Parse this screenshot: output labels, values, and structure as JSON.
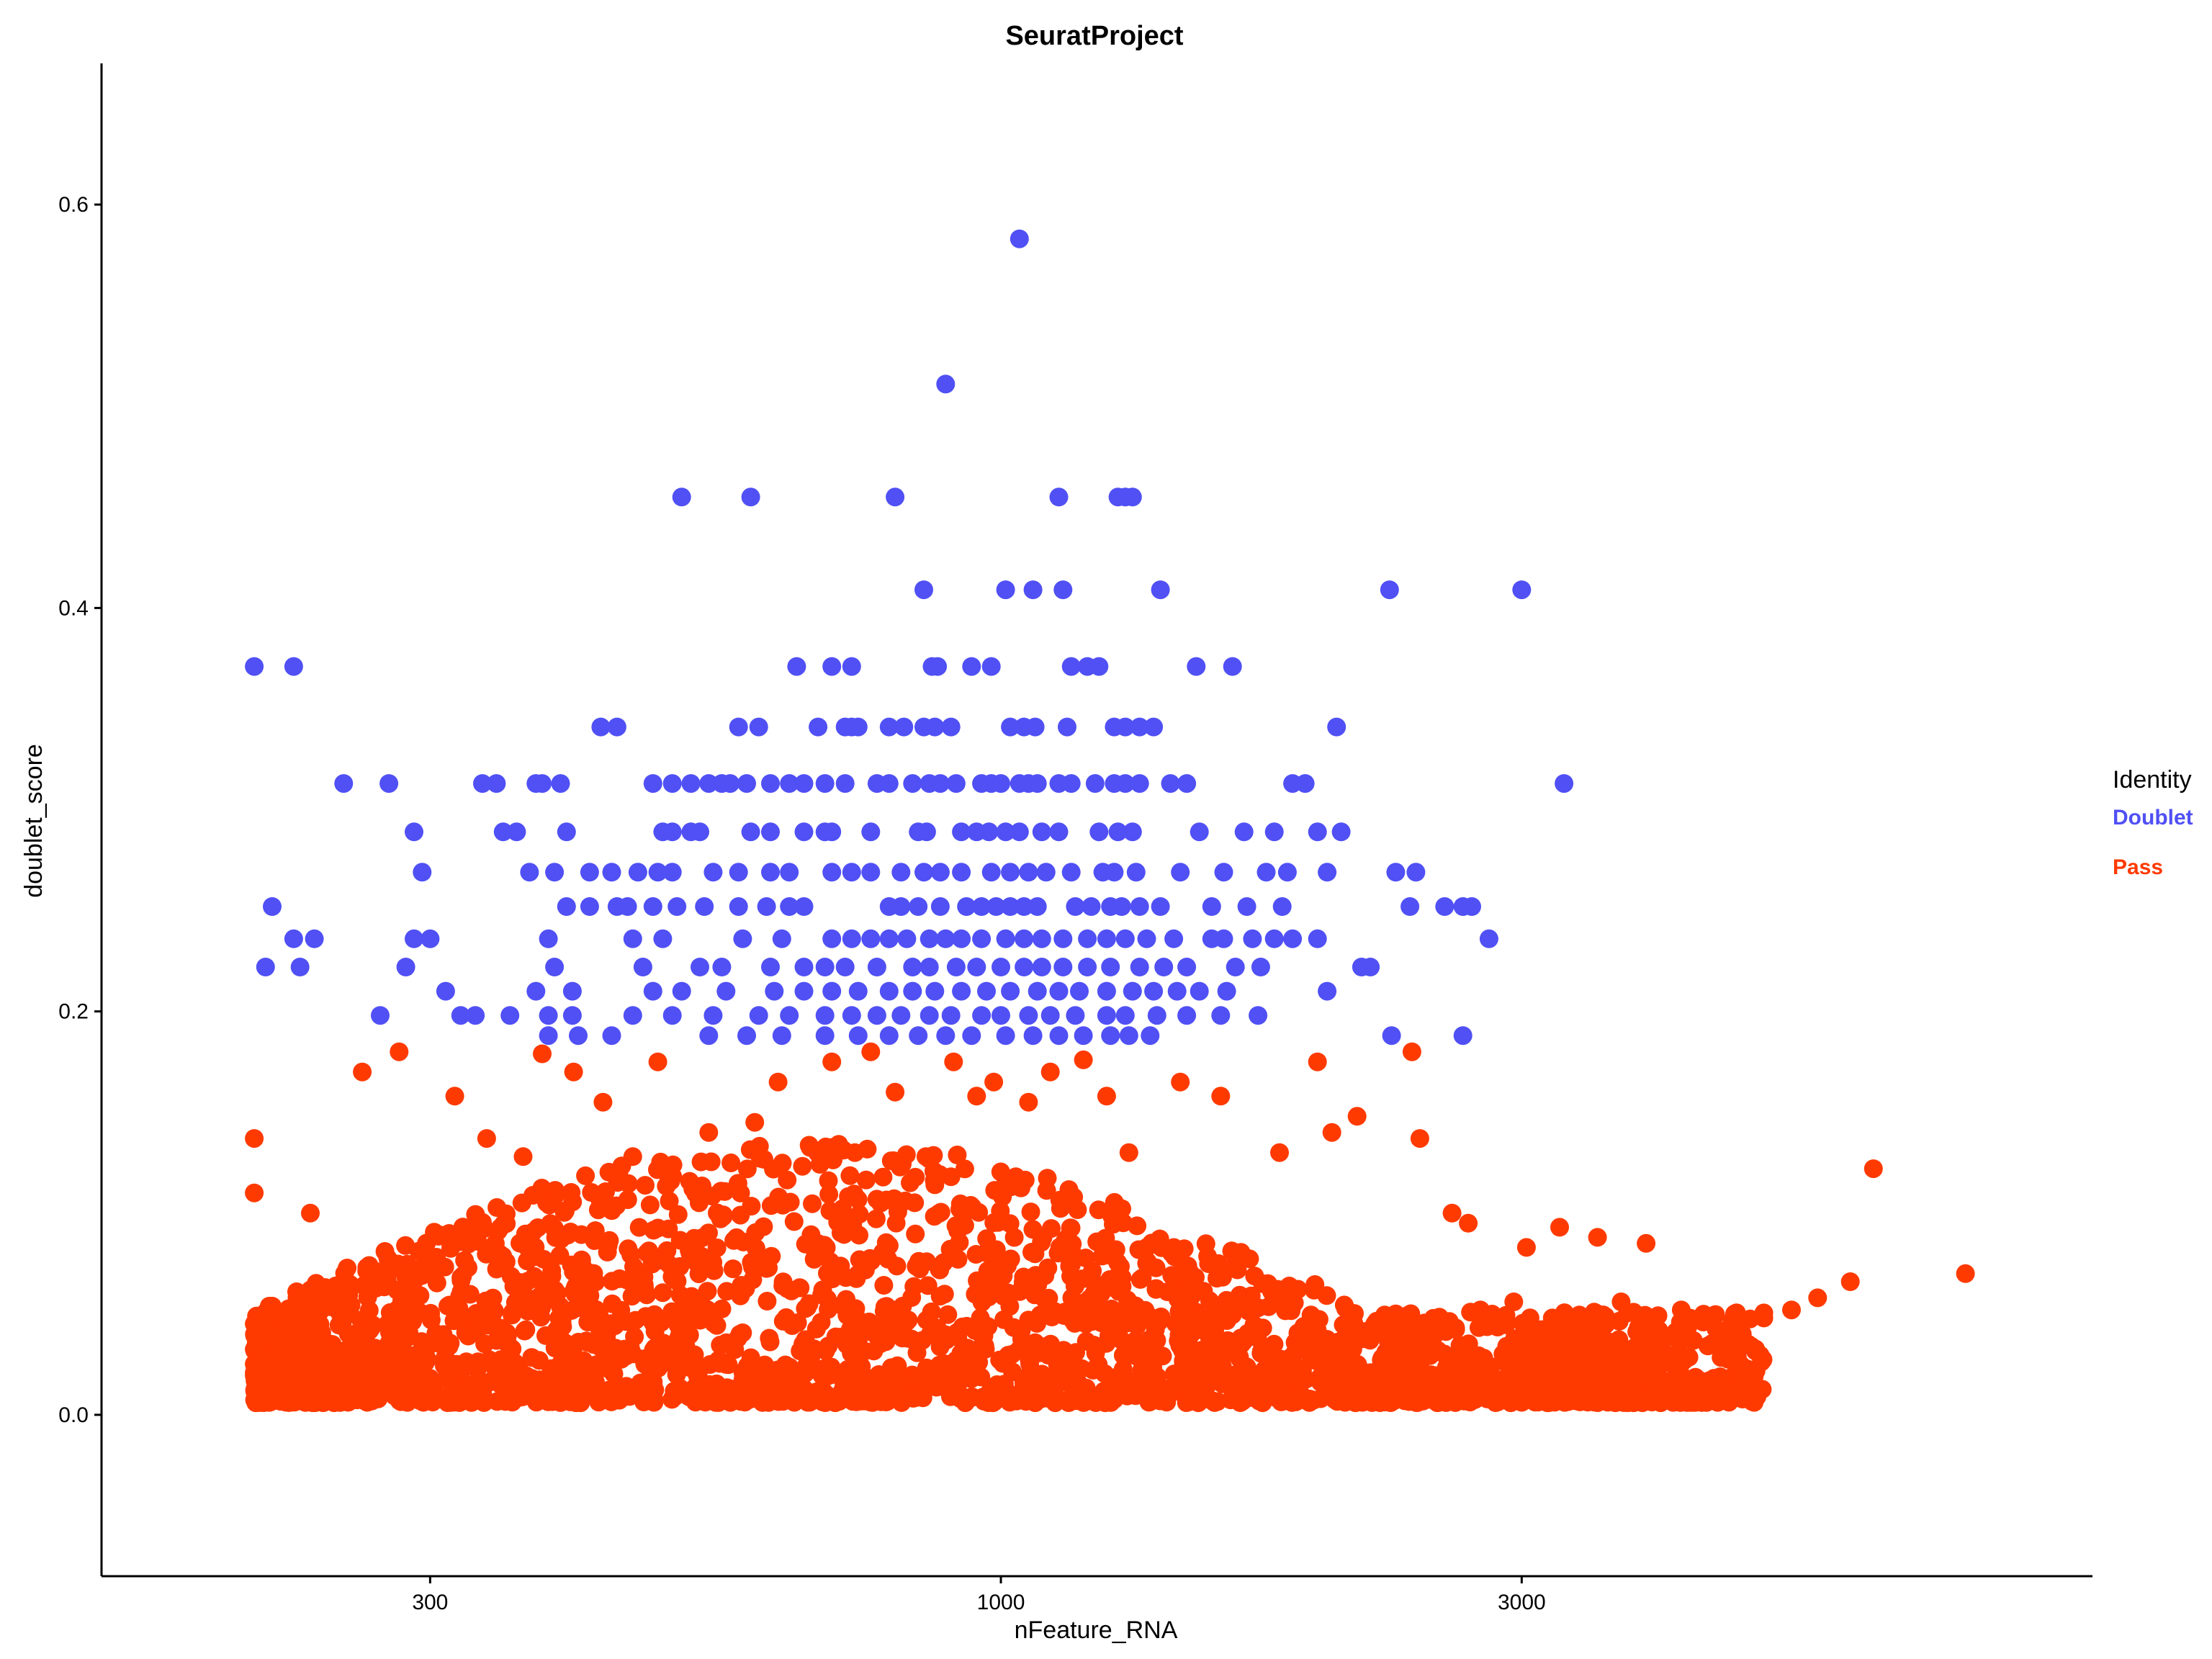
{
  "chart_data": {
    "type": "scatter",
    "title": "SeuratProject",
    "xlabel": "nFeature_RNA",
    "ylabel": "doublet_score",
    "x_scale": "log10",
    "xlim": [
      150,
      10000
    ],
    "ylim": [
      -0.08,
      0.67
    ],
    "x_ticks": [
      300,
      1000,
      3000
    ],
    "x_tick_labels": [
      "300",
      "1000",
      "3000"
    ],
    "y_ticks": [
      0.0,
      0.2,
      0.4,
      0.6
    ],
    "y_tick_labels": [
      "0.0",
      "0.2",
      "0.4",
      "0.6"
    ],
    "grid": false,
    "legend": {
      "title": "Identity",
      "placement": "right",
      "entries": [
        {
          "name": "Doublet",
          "color": "#5050f5"
        },
        {
          "name": "Pass",
          "color": "#ff3a00"
        }
      ]
    },
    "series": [
      {
        "name": "Doublet",
        "color": "#5050f5",
        "x": [
          1040,
          890,
          510,
          590,
          800,
          1130,
          1280,
          1300,
          1320,
          850,
          1070,
          1010,
          1140,
          1400,
          3000,
          2270,
          207,
          225,
          650,
          700,
          730,
          865,
          875,
          940,
          980,
          1160,
          1200,
          1230,
          1510,
          1630,
          430,
          445,
          575,
          600,
          680,
          720,
          730,
          740,
          790,
          815,
          850,
          870,
          900,
          1020,
          1050,
          1075,
          1150,
          1270,
          1300,
          1340,
          1380,
          2030,
          250,
          275,
          335,
          345,
          375,
          380,
          395,
          480,
          500,
          520,
          540,
          555,
          565,
          585,
          615,
          640,
          660,
          690,
          720,
          770,
          790,
          830,
          860,
          880,
          910,
          960,
          980,
          1000,
          1040,
          1060,
          1080,
          1130,
          1160,
          1220,
          1270,
          1300,
          1340,
          1430,
          1480,
          1850,
          1900,
          3280,
          290,
          350,
          360,
          400,
          490,
          500,
          520,
          530,
          590,
          615,
          660,
          690,
          700,
          760,
          840,
          855,
          920,
          950,
          975,
          1010,
          1040,
          1090,
          1130,
          1230,
          1280,
          1320,
          1520,
          1670,
          1780,
          1950,
          2050,
          295,
          370,
          390,
          420,
          440,
          465,
          485,
          500,
          545,
          575,
          615,
          640,
          700,
          730,
          760,
          810,
          850,
          880,
          920,
          980,
          1020,
          1060,
          1100,
          1160,
          1240,
          1270,
          1330,
          1460,
          1600,
          1750,
          1830,
          1990,
          2300,
          2400,
          215,
          400,
          420,
          445,
          455,
          480,
          505,
          535,
          575,
          610,
          640,
          660,
          790,
          810,
          840,
          880,
          930,
          960,
          990,
          1020,
          1050,
          1080,
          1170,
          1210,
          1260,
          1290,
          1340,
          1400,
          1560,
          1680,
          1810,
          2370,
          2550,
          2650,
          2700,
          225,
          235,
          290,
          300,
          385,
          460,
          490,
          580,
          630,
          700,
          730,
          760,
          790,
          820,
          860,
          890,
          920,
          960,
          1010,
          1050,
          1090,
          1140,
          1200,
          1250,
          1300,
          1360,
          1440,
          1560,
          1600,
          1700,
          1780,
          1850,
          1950,
          2800,
          212,
          228,
          285,
          390,
          470,
          530,
          555,
          615,
          660,
          690,
          720,
          770,
          830,
          860,
          910,
          950,
          1000,
          1050,
          1090,
          1140,
          1200,
          1260,
          1340,
          1410,
          1480,
          1640,
          1730,
          2140,
          2180,
          310,
          375,
          405,
          480,
          510,
          560,
          620,
          660,
          700,
          740,
          790,
          830,
          870,
          920,
          970,
          1020,
          1080,
          1130,
          1180,
          1250,
          1320,
          1380,
          1450,
          1520,
          1610,
          1990,
          270,
          320,
          330,
          355,
          385,
          405,
          460,
          500,
          545,
          600,
          640,
          690,
          730,
          770,
          810,
          860,
          900,
          960,
          1000,
          1060,
          1110,
          1170,
          1250,
          1300,
          1390,
          1480,
          1590,
          1720,
          385,
          410,
          440,
          540,
          585,
          630,
          690,
          740,
          790,
          840,
          890,
          940,
          1010,
          1070,
          1130,
          1190,
          1260,
          1310,
          1370,
          2280,
          2650
        ],
        "y": [
          0.583,
          0.511,
          0.455,
          0.455,
          0.455,
          0.455,
          0.455,
          0.455,
          0.455,
          0.409,
          0.409,
          0.409,
          0.409,
          0.409,
          0.409,
          0.409,
          0.371,
          0.371,
          0.371,
          0.371,
          0.371,
          0.371,
          0.371,
          0.371,
          0.371,
          0.371,
          0.371,
          0.371,
          0.371,
          0.371,
          0.341,
          0.341,
          0.341,
          0.341,
          0.341,
          0.341,
          0.341,
          0.341,
          0.341,
          0.341,
          0.341,
          0.341,
          0.341,
          0.341,
          0.341,
          0.341,
          0.341,
          0.341,
          0.341,
          0.341,
          0.341,
          0.341,
          0.313,
          0.313,
          0.313,
          0.313,
          0.313,
          0.313,
          0.313,
          0.313,
          0.313,
          0.313,
          0.313,
          0.313,
          0.313,
          0.313,
          0.313,
          0.313,
          0.313,
          0.313,
          0.313,
          0.313,
          0.313,
          0.313,
          0.313,
          0.313,
          0.313,
          0.313,
          0.313,
          0.313,
          0.313,
          0.313,
          0.313,
          0.313,
          0.313,
          0.313,
          0.313,
          0.313,
          0.313,
          0.313,
          0.313,
          0.313,
          0.313,
          0.313,
          0.289,
          0.289,
          0.289,
          0.289,
          0.289,
          0.289,
          0.289,
          0.289,
          0.289,
          0.289,
          0.289,
          0.289,
          0.289,
          0.289,
          0.289,
          0.289,
          0.289,
          0.289,
          0.289,
          0.289,
          0.289,
          0.289,
          0.289,
          0.289,
          0.289,
          0.289,
          0.289,
          0.289,
          0.289,
          0.289,
          0.289,
          0.269,
          0.269,
          0.269,
          0.269,
          0.269,
          0.269,
          0.269,
          0.269,
          0.269,
          0.269,
          0.269,
          0.269,
          0.269,
          0.269,
          0.269,
          0.269,
          0.269,
          0.269,
          0.269,
          0.269,
          0.269,
          0.269,
          0.269,
          0.269,
          0.269,
          0.269,
          0.269,
          0.269,
          0.269,
          0.269,
          0.269,
          0.269,
          0.269,
          0.269,
          0.252,
          0.252,
          0.252,
          0.252,
          0.252,
          0.252,
          0.252,
          0.252,
          0.252,
          0.252,
          0.252,
          0.252,
          0.252,
          0.252,
          0.252,
          0.252,
          0.252,
          0.252,
          0.252,
          0.252,
          0.252,
          0.252,
          0.252,
          0.252,
          0.252,
          0.252,
          0.252,
          0.252,
          0.252,
          0.252,
          0.252,
          0.252,
          0.252,
          0.252,
          0.252,
          0.236,
          0.236,
          0.236,
          0.236,
          0.236,
          0.236,
          0.236,
          0.236,
          0.236,
          0.236,
          0.236,
          0.236,
          0.236,
          0.236,
          0.236,
          0.236,
          0.236,
          0.236,
          0.236,
          0.236,
          0.236,
          0.236,
          0.236,
          0.236,
          0.236,
          0.236,
          0.236,
          0.236,
          0.236,
          0.236,
          0.236,
          0.236,
          0.236,
          0.236,
          0.222,
          0.222,
          0.222,
          0.222,
          0.222,
          0.222,
          0.222,
          0.222,
          0.222,
          0.222,
          0.222,
          0.222,
          0.222,
          0.222,
          0.222,
          0.222,
          0.222,
          0.222,
          0.222,
          0.222,
          0.222,
          0.222,
          0.222,
          0.222,
          0.222,
          0.222,
          0.222,
          0.222,
          0.222,
          0.21,
          0.21,
          0.21,
          0.21,
          0.21,
          0.21,
          0.21,
          0.21,
          0.21,
          0.21,
          0.21,
          0.21,
          0.21,
          0.21,
          0.21,
          0.21,
          0.21,
          0.21,
          0.21,
          0.21,
          0.21,
          0.21,
          0.21,
          0.21,
          0.21,
          0.21,
          0.198,
          0.198,
          0.198,
          0.198,
          0.198,
          0.198,
          0.198,
          0.198,
          0.198,
          0.198,
          0.198,
          0.198,
          0.198,
          0.198,
          0.198,
          0.198,
          0.198,
          0.198,
          0.198,
          0.198,
          0.198,
          0.198,
          0.198,
          0.198,
          0.198,
          0.198,
          0.198,
          0.198,
          0.188,
          0.188,
          0.188,
          0.188,
          0.188,
          0.188,
          0.188,
          0.188,
          0.188,
          0.188,
          0.188,
          0.188,
          0.188,
          0.188,
          0.188,
          0.188,
          0.188,
          0.188,
          0.188,
          0.188,
          0.188
        ]
      },
      {
        "name": "Pass",
        "color": "#ff3a00",
        "x": [
          207,
          207,
          233,
          260,
          281,
          316,
          338,
          365,
          380,
          406,
          432,
          460,
          485,
          540,
          595,
          625,
          700,
          735,
          760,
          800,
          905,
          950,
          985,
          1060,
          1110,
          1190,
          1250,
          1310,
          1460,
          1590,
          1800,
          1950,
          2010,
          2120,
          2380,
          2420,
          2590,
          2680,
          3030,
          3250,
          3520,
          3900,
          6300,
          7650,
          6000,
          5600,
          5300,
          5000,
          4700,
          4400,
          4200,
          3700,
          3450,
          3200,
          2950,
          2750,
          2550,
          2300,
          2200
        ],
        "y": [
          0.137,
          0.11,
          0.1,
          0.17,
          0.18,
          0.158,
          0.137,
          0.128,
          0.179,
          0.17,
          0.155,
          0.128,
          0.175,
          0.14,
          0.145,
          0.165,
          0.175,
          0.13,
          0.18,
          0.16,
          0.175,
          0.158,
          0.165,
          0.155,
          0.17,
          0.176,
          0.158,
          0.13,
          0.165,
          0.158,
          0.13,
          0.175,
          0.14,
          0.148,
          0.18,
          0.137,
          0.1,
          0.095,
          0.083,
          0.093,
          0.088,
          0.085,
          0.122,
          0.07,
          0.066,
          0.058,
          0.052,
          0.048,
          0.05,
          0.046,
          0.052,
          0.056,
          0.042,
          0.048,
          0.056,
          0.052,
          0.045,
          0.05,
          0.045
        ],
        "dense_region": {
          "x_range": [
            207,
            5000
          ],
          "y_range": [
            0.0,
            0.13
          ]
        }
      }
    ]
  }
}
